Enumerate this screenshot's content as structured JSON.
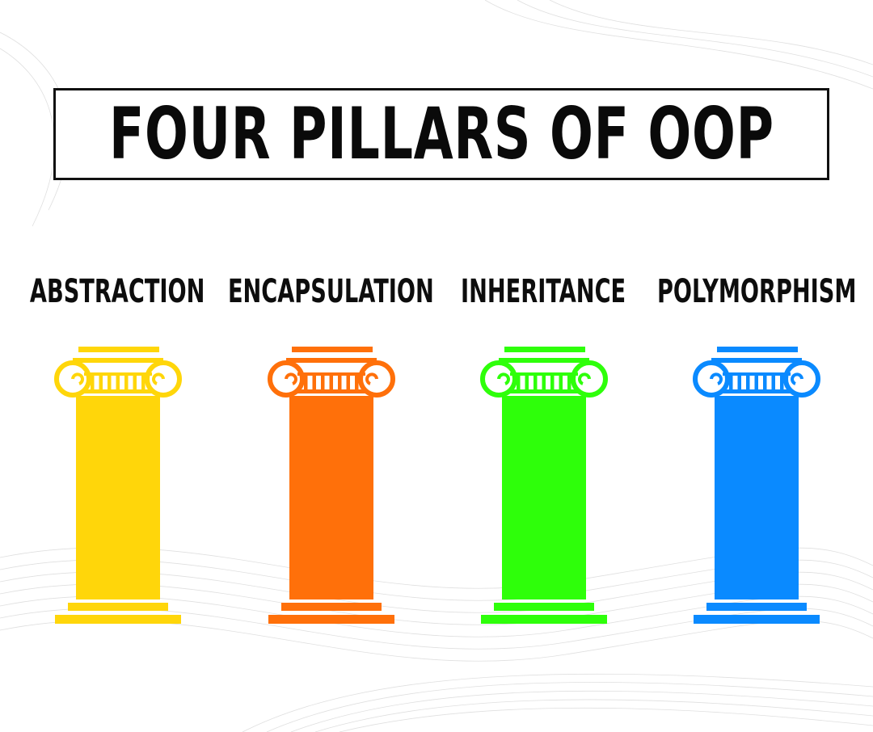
{
  "title": "FOUR PILLARS OF OOP",
  "pillars": [
    {
      "label": "ABSTRACTION",
      "color": "#FFD60A",
      "icon": "ionic-column-icon"
    },
    {
      "label": "ENCAPSULATION",
      "color": "#FF700A",
      "icon": "ionic-column-icon"
    },
    {
      "label": "INHERITANCE",
      "color": "#2EFF0A",
      "icon": "ionic-column-icon"
    },
    {
      "label": "POLYMORPHISM",
      "color": "#0A8AFF",
      "icon": "ionic-column-icon"
    }
  ]
}
